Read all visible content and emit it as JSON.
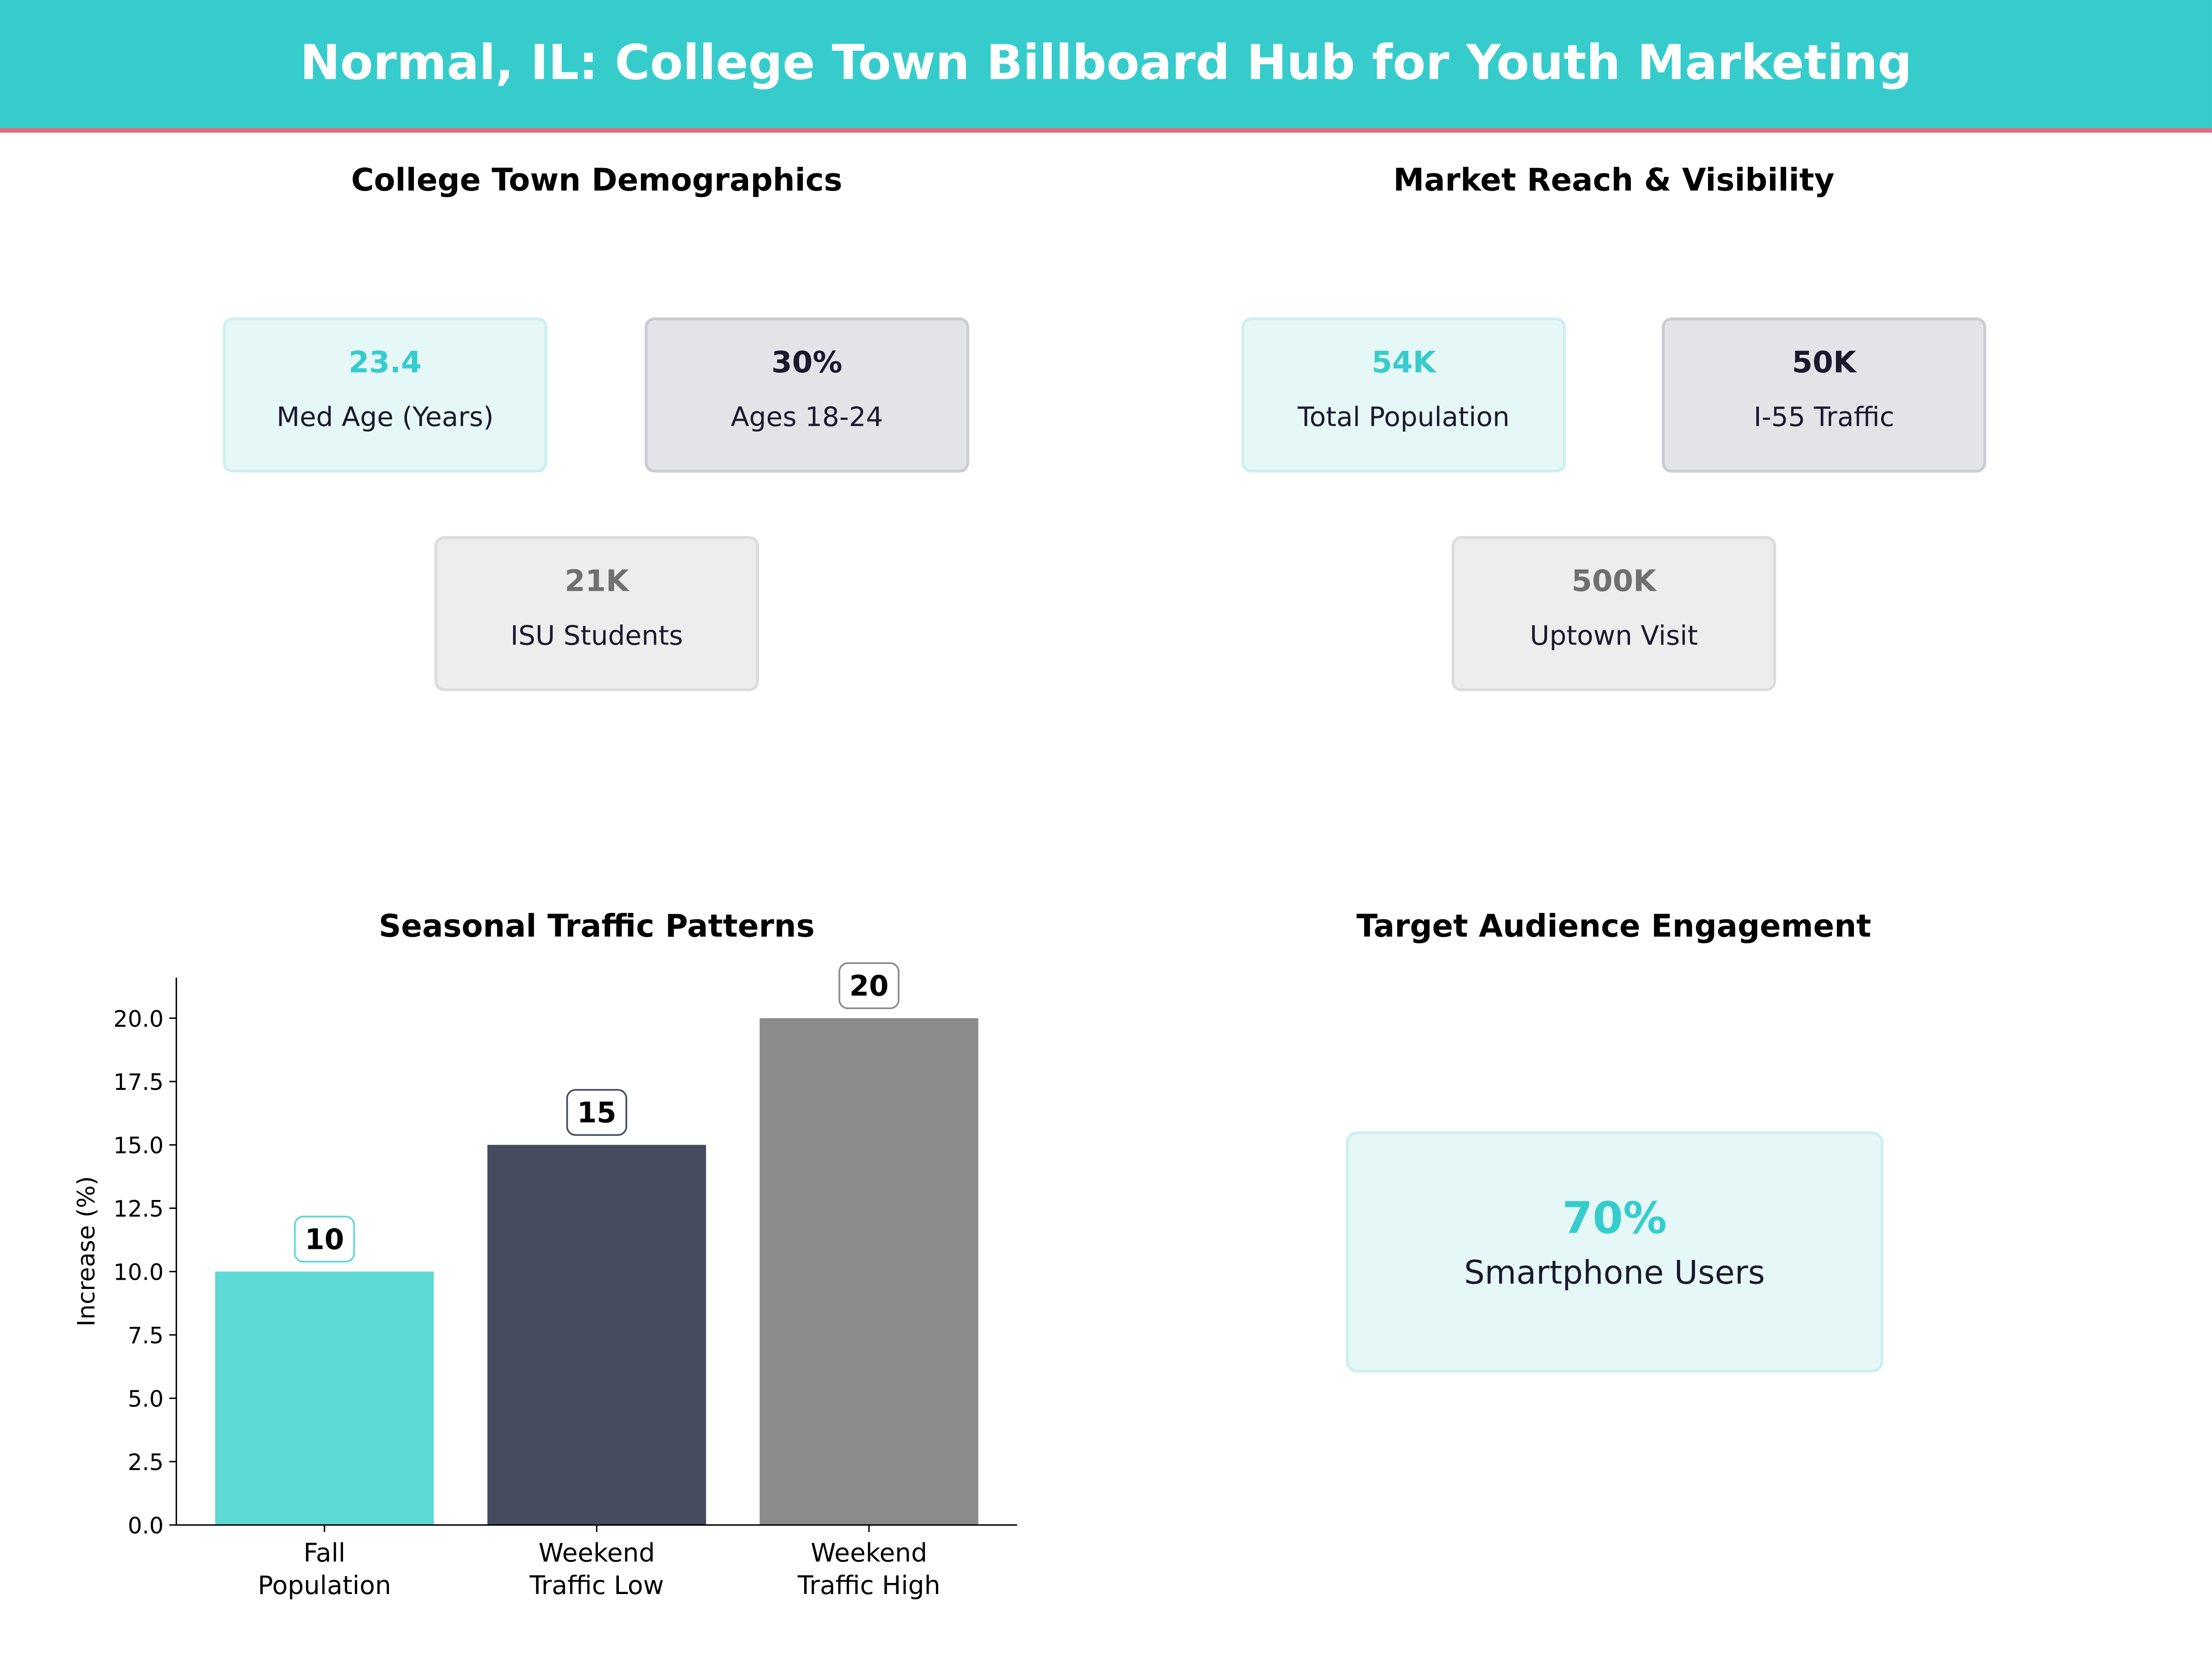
{
  "header": {
    "title": "Normal, IL: College Town Billboard Hub for Youth Marketing"
  },
  "demographics": {
    "title": "College Town Demographics",
    "cards": [
      {
        "value": "23.4",
        "label": "Med Age (Years)",
        "style": "teal"
      },
      {
        "value": "30%",
        "label": "Ages 18-24",
        "style": "dark"
      },
      {
        "value": "21K",
        "label": "ISU Students",
        "style": "gray"
      }
    ]
  },
  "reach": {
    "title": "Market Reach & Visibility",
    "cards": [
      {
        "value": "54K",
        "label": "Total Population",
        "style": "teal"
      },
      {
        "value": "50K",
        "label": "I-55 Traffic",
        "style": "dark"
      },
      {
        "value": "500K",
        "label": "Uptown Visit",
        "style": "gray"
      }
    ]
  },
  "engagement": {
    "title": "Target Audience Engagement",
    "value": "70%",
    "label": "Smartphone Users"
  },
  "colors": {
    "teal": "#36CCCC",
    "accent": "#F06277",
    "dark": "#464B5F",
    "gray": "#8B8B8B",
    "bar_teal": "#5DD8D5"
  },
  "chart_data": {
    "type": "bar",
    "title": "Seasonal Traffic Patterns",
    "ylabel": "Increase (%)",
    "xlabel": "",
    "categories": [
      [
        "Fall",
        "Population"
      ],
      [
        "Weekend",
        "Traffic Low"
      ],
      [
        "Weekend",
        "Traffic High"
      ]
    ],
    "values": [
      10,
      15,
      20
    ],
    "data_labels": [
      "10",
      "15",
      "20"
    ],
    "bar_colors": [
      "#5DD8D5",
      "#464B5F",
      "#8B8B8B"
    ],
    "ylim": [
      0,
      21.6
    ],
    "yticks": [
      "0.0",
      "2.5",
      "5.0",
      "7.5",
      "10.0",
      "12.5",
      "15.0",
      "17.5",
      "20.0"
    ],
    "grid": false
  }
}
